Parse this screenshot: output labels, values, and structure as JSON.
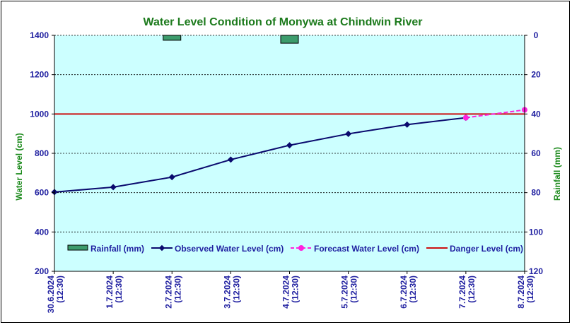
{
  "chart_data": {
    "type": "line",
    "title": "Water Level Condition of Monywa at Chindwin River",
    "ylabel": "Water Level (cm)",
    "y2label": "Rainfall (mm)",
    "ylim": [
      200,
      1400
    ],
    "yticks": [
      200,
      400,
      600,
      800,
      1000,
      1200,
      1400
    ],
    "y2lim": [
      0,
      120
    ],
    "y2ticks": [
      0,
      20,
      40,
      60,
      80,
      100,
      120
    ],
    "y2_inverted": true,
    "categories": [
      [
        "30.6.2024",
        "(12:30)"
      ],
      [
        "1.7.2024",
        "(12:30)"
      ],
      [
        "2.7.2024",
        "(12:30)"
      ],
      [
        "3.7.2024",
        "(12:30)"
      ],
      [
        "4.7.2024",
        "(12:30)"
      ],
      [
        "5.7.2024",
        "(12:30)"
      ],
      [
        "6.7.2024",
        "(12:30)"
      ],
      [
        "7.7.2024",
        "(12:30)"
      ],
      [
        "8.7.2024",
        "(12:30)"
      ]
    ],
    "rainfall": {
      "name": "Rainfall (mm)",
      "color": "#3c9c6c",
      "values": [
        {
          "x": 2,
          "value": 2.5
        },
        {
          "x": 4,
          "value": 4
        }
      ]
    },
    "observed": {
      "name": "Observed Water Level (cm)",
      "color": "#0a0a6e",
      "values": [
        {
          "x": 0,
          "value": 603
        },
        {
          "x": 1,
          "value": 628
        },
        {
          "x": 2,
          "value": 679
        },
        {
          "x": 3,
          "value": 768
        },
        {
          "x": 4,
          "value": 841
        },
        {
          "x": 5,
          "value": 899
        },
        {
          "x": 6,
          "value": 946
        },
        {
          "x": 7,
          "value": 981
        }
      ]
    },
    "forecast": {
      "name": "Forecast Water Level (cm)",
      "color": "#ff22dd",
      "values": [
        {
          "x": 7,
          "value": 981
        },
        {
          "x": 8,
          "value": 1021
        }
      ]
    },
    "danger": {
      "name": "Danger Level (cm)",
      "color": "#cc1111",
      "value": 1000
    },
    "plot_background": "#ccffff",
    "grid": true,
    "legend_position": "bottom"
  }
}
